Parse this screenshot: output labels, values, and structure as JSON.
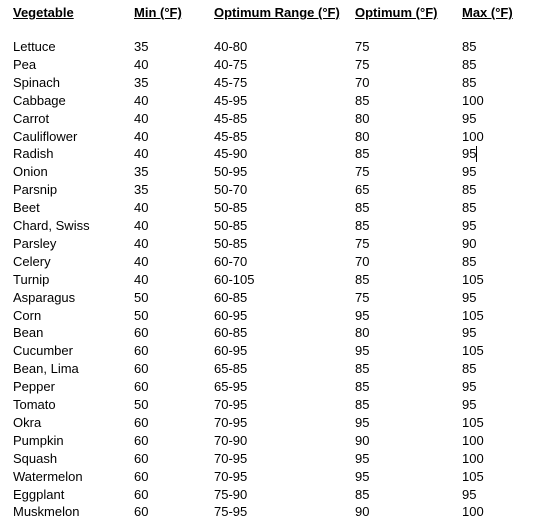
{
  "headers": {
    "vegetable": "Vegetable",
    "min": "Min (°F)",
    "range": "Optimum Range (°F)",
    "optimum": "Optimum (°F)",
    "max": "Max (°F)"
  },
  "rows": [
    {
      "vegetable": "Lettuce",
      "min": "35",
      "range": "40-80",
      "optimum": "75",
      "max": "85"
    },
    {
      "vegetable": "Pea",
      "min": "40",
      "range": "40-75",
      "optimum": "75",
      "max": "85"
    },
    {
      "vegetable": "Spinach",
      "min": "35",
      "range": "45-75",
      "optimum": "70",
      "max": "85"
    },
    {
      "vegetable": "Cabbage",
      "min": "40",
      "range": "45-95",
      "optimum": "85",
      "max": "100"
    },
    {
      "vegetable": "Carrot",
      "min": "40",
      "range": "45-85",
      "optimum": "80",
      "max": "95"
    },
    {
      "vegetable": "Cauliflower",
      "min": "40",
      "range": "45-85",
      "optimum": "80",
      "max": "100"
    },
    {
      "vegetable": "Radish",
      "min": "40",
      "range": "45-90",
      "optimum": "85",
      "max": "95"
    },
    {
      "vegetable": "Onion",
      "min": "35",
      "range": "50-95",
      "optimum": "75",
      "max": "95"
    },
    {
      "vegetable": "Parsnip",
      "min": "35",
      "range": "50-70",
      "optimum": "65",
      "max": "85"
    },
    {
      "vegetable": "Beet",
      "min": "40",
      "range": "50-85",
      "optimum": "85",
      "max": "85"
    },
    {
      "vegetable": "Chard, Swiss",
      "min": "40",
      "range": "50-85",
      "optimum": "85",
      "max": "95"
    },
    {
      "vegetable": "Parsley",
      "min": "40",
      "range": "50-85",
      "optimum": "75",
      "max": "90"
    },
    {
      "vegetable": "Celery",
      "min": "40",
      "range": "60-70",
      "optimum": "70",
      "max": "85"
    },
    {
      "vegetable": "Turnip",
      "min": "40",
      "range": "60-105",
      "optimum": "85",
      "max": "105"
    },
    {
      "vegetable": "Asparagus",
      "min": "50",
      "range": "60-85",
      "optimum": "75",
      "max": "95"
    },
    {
      "vegetable": "Corn",
      "min": "50",
      "range": "60-95",
      "optimum": "95",
      "max": "105"
    },
    {
      "vegetable": "Bean",
      "min": "60",
      "range": "60-85",
      "optimum": "80",
      "max": "95"
    },
    {
      "vegetable": "Cucumber",
      "min": "60",
      "range": "60-95",
      "optimum": "95",
      "max": "105"
    },
    {
      "vegetable": "Bean, Lima",
      "min": "60",
      "range": "65-85",
      "optimum": "85",
      "max": "85"
    },
    {
      "vegetable": "Pepper",
      "min": "60",
      "range": "65-95",
      "optimum": "85",
      "max": "95"
    },
    {
      "vegetable": "Tomato",
      "min": "50",
      "range": "70-95",
      "optimum": "85",
      "max": "95"
    },
    {
      "vegetable": "Okra",
      "min": "60",
      "range": "70-95",
      "optimum": "95",
      "max": "105"
    },
    {
      "vegetable": "Pumpkin",
      "min": "60",
      "range": "70-90",
      "optimum": "90",
      "max": "100"
    },
    {
      "vegetable": "Squash",
      "min": "60",
      "range": "70-95",
      "optimum": "95",
      "max": "100"
    },
    {
      "vegetable": "Watermelon",
      "min": "60",
      "range": "70-95",
      "optimum": "95",
      "max": "105"
    },
    {
      "vegetable": "Eggplant",
      "min": "60",
      "range": "75-90",
      "optimum": "85",
      "max": "95"
    },
    {
      "vegetable": "Muskmelon",
      "min": "60",
      "range": "75-95",
      "optimum": "90",
      "max": "100"
    }
  ]
}
